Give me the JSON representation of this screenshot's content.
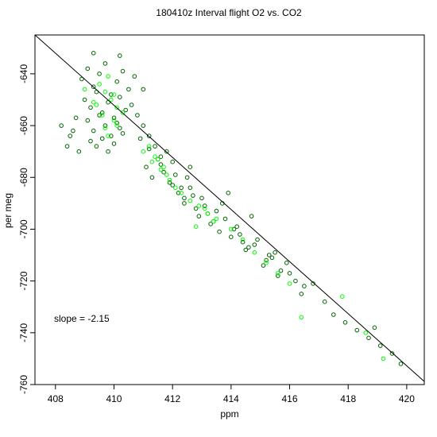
{
  "chart_data": {
    "type": "scatter",
    "title": "180410z   Interval flight O2 vs. CO2",
    "xlabel": "ppm",
    "ylabel": "per meg",
    "xlim": [
      407.3,
      420.6
    ],
    "ylim": [
      -760,
      -625
    ],
    "x_ticks": [
      408,
      410,
      412,
      414,
      416,
      418,
      420
    ],
    "y_ticks": [
      -640,
      -660,
      -680,
      -700,
      -720,
      -740,
      -760
    ],
    "fit_line": {
      "slope": -2.15,
      "points": [
        [
          407.3,
          -625
        ],
        [
          420.6,
          -758.8
        ]
      ]
    },
    "annotation": "slope =  -2.15",
    "series": [
      {
        "color": "#006400",
        "x": [
          408.9,
          409.1,
          409.3,
          409.5,
          409.7,
          409.9,
          410.1,
          410.3,
          410.5,
          409.0,
          409.2,
          409.4,
          409.6,
          409.8,
          410.0,
          410.2,
          410.4,
          409.1,
          409.3,
          409.5,
          409.7,
          409.9,
          410.1,
          410.3,
          409.2,
          409.4,
          409.6,
          409.8,
          410.0,
          410.2,
          410.6,
          410.8,
          411.0,
          411.2,
          411.4,
          411.6,
          411.8,
          412.0,
          411.1,
          411.3,
          411.5,
          411.7,
          411.9,
          412.1,
          412.3,
          410.9,
          411.2,
          411.6,
          412.0,
          412.4,
          412.2,
          412.4,
          412.6,
          412.8,
          413.0,
          413.2,
          412.5,
          412.7,
          412.9,
          413.1,
          413.3,
          413.5,
          413.4,
          413.6,
          413.8,
          414.0,
          414.2,
          414.4,
          413.7,
          414.1,
          414.5,
          414.3,
          414.6,
          414.9,
          415.2,
          415.5,
          414.8,
          415.1,
          415.4,
          415.7,
          415.3,
          415.6,
          415.9,
          416.2,
          416.5,
          416.0,
          416.4,
          416.8,
          417.2,
          417.5,
          417.9,
          418.3,
          418.7,
          419.1,
          419.5,
          419.8,
          418.9,
          408.2,
          408.5,
          408.7,
          408.4,
          408.6,
          408.8,
          410.7,
          411.0,
          409.3,
          410.2,
          412.6,
          413.9,
          414.7
        ],
        "y": [
          -642,
          -638,
          -645,
          -640,
          -636,
          -648,
          -643,
          -639,
          -646,
          -650,
          -653,
          -647,
          -655,
          -651,
          -657,
          -649,
          -654,
          -658,
          -662,
          -656,
          -660,
          -664,
          -659,
          -663,
          -666,
          -668,
          -665,
          -670,
          -667,
          -661,
          -652,
          -656,
          -660,
          -664,
          -668,
          -672,
          -670,
          -674,
          -676,
          -680,
          -673,
          -678,
          -682,
          -679,
          -684,
          -665,
          -669,
          -675,
          -683,
          -688,
          -686,
          -690,
          -684,
          -692,
          -688,
          -694,
          -680,
          -687,
          -695,
          -691,
          -698,
          -693,
          -697,
          -701,
          -696,
          -703,
          -699,
          -705,
          -690,
          -700,
          -708,
          -702,
          -707,
          -704,
          -712,
          -709,
          -706,
          -714,
          -711,
          -716,
          -710,
          -718,
          -713,
          -720,
          -722,
          -717,
          -725,
          -721,
          -728,
          -733,
          -736,
          -739,
          -742,
          -745,
          -748,
          -752,
          -738,
          -660,
          -664,
          -657,
          -668,
          -662,
          -670,
          -641,
          -646,
          -632,
          -633,
          -676,
          -686,
          -695
        ]
      },
      {
        "color": "#00ff00",
        "x": [
          409.5,
          409.7,
          409.9,
          410.1,
          409.6,
          409.8,
          410.0,
          409.4,
          409.7,
          410.0,
          410.3,
          409.8,
          410.1,
          411.0,
          411.3,
          411.6,
          411.9,
          411.2,
          411.5,
          411.8,
          412.1,
          411.4,
          411.7,
          412.3,
          412.6,
          412.9,
          413.2,
          413.5,
          412.8,
          413.1,
          413.4,
          414.0,
          414.4,
          414.8,
          415.2,
          415.6,
          416.0,
          416.4,
          417.8,
          418.6,
          419.2,
          409.0,
          409.3
        ],
        "y": [
          -644,
          -647,
          -650,
          -653,
          -656,
          -641,
          -658,
          -652,
          -661,
          -648,
          -655,
          -664,
          -660,
          -670,
          -674,
          -677,
          -681,
          -668,
          -673,
          -679,
          -684,
          -672,
          -676,
          -686,
          -689,
          -691,
          -694,
          -696,
          -699,
          -692,
          -697,
          -700,
          -704,
          -709,
          -713,
          -717,
          -721,
          -734,
          -726,
          -740,
          -750,
          -646,
          -651
        ]
      }
    ]
  }
}
